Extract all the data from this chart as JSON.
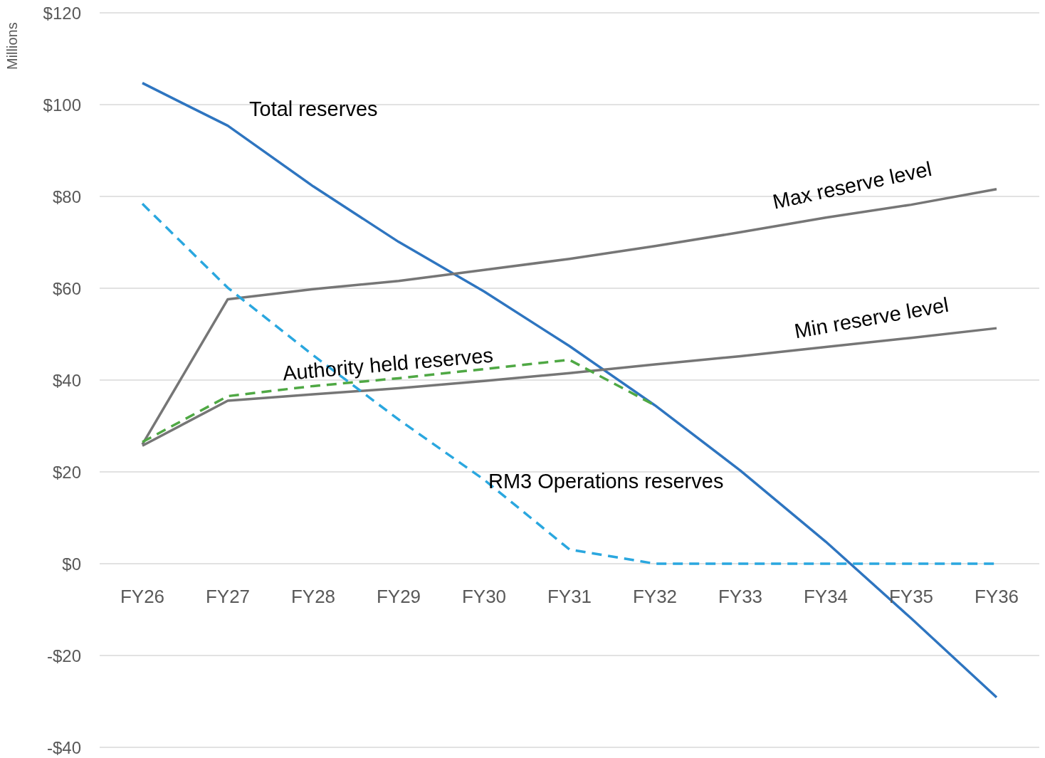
{
  "chart_data": {
    "type": "line",
    "ylabel": "Millions",
    "categories": [
      "FY26",
      "FY27",
      "FY28",
      "FY29",
      "FY30",
      "FY31",
      "FY32",
      "FY33",
      "FY34",
      "FY35",
      "FY36"
    ],
    "ylim": [
      -40,
      120
    ],
    "yticks": [
      {
        "value": -40,
        "label": "-$40"
      },
      {
        "value": -20,
        "label": "-$20"
      },
      {
        "value": 0,
        "label": "$0"
      },
      {
        "value": 20,
        "label": "$20"
      },
      {
        "value": 40,
        "label": "$40"
      },
      {
        "value": 60,
        "label": "$60"
      },
      {
        "value": 80,
        "label": "$80"
      },
      {
        "value": 100,
        "label": "$100"
      },
      {
        "value": 120,
        "label": "$120"
      }
    ],
    "grid": "y",
    "marker": "none",
    "series": [
      {
        "name": "Total reserves",
        "color": "#2e75c0",
        "line_style": "solid",
        "values": [
          104.7,
          95.4,
          82.2,
          70.1,
          59.3,
          47.4,
          34.5,
          20.3,
          4.8,
          -11.9,
          -29.1
        ]
      },
      {
        "name": "Max reserve level",
        "color": "#767676",
        "line_style": "solid",
        "values": [
          26.0,
          57.6,
          59.8,
          61.6,
          64.0,
          66.4,
          69.2,
          72.2,
          75.4,
          78.2,
          81.6
        ]
      },
      {
        "name": "Min reserve level",
        "color": "#767676",
        "line_style": "solid",
        "values": [
          25.7,
          35.5,
          36.9,
          38.2,
          39.8,
          41.5,
          43.4,
          45.2,
          47.2,
          49.2,
          51.3
        ]
      },
      {
        "name": "Authority held reserves",
        "color": "#4fa844",
        "line_style": "dashed",
        "values": [
          26.5,
          36.5,
          38.7,
          40.4,
          42.4,
          44.4,
          34.5,
          null,
          null,
          null,
          null
        ]
      },
      {
        "name": "RM3 Operations reserves",
        "color": "#2aa7df",
        "line_style": "dashed",
        "values": [
          78.4,
          60.1,
          45.4,
          31.4,
          18.3,
          3.1,
          0,
          0,
          0,
          0,
          0
        ]
      }
    ]
  }
}
